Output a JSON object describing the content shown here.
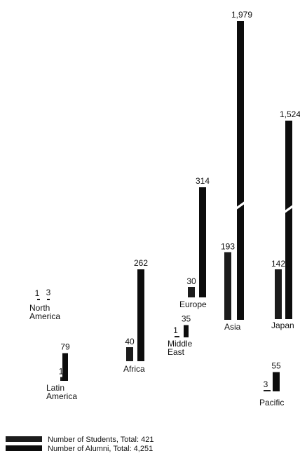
{
  "chart_data": {
    "type": "bar",
    "colors": {
      "students": "#1c1c1c",
      "alumni": "#0d0d0d"
    },
    "regions": [
      {
        "label": [
          "North",
          "America"
        ],
        "students": 1,
        "alumni": 3,
        "students_text": "1",
        "alumni_text": "3",
        "broken": false
      },
      {
        "label": [
          "Latin",
          "America"
        ],
        "students": 11,
        "alumni": 79,
        "students_text": "11",
        "alumni_text": "79",
        "broken": false
      },
      {
        "label": [
          "Africa"
        ],
        "students": 40,
        "alumni": 262,
        "students_text": "40",
        "alumni_text": "262",
        "broken": false
      },
      {
        "label": [
          "Middle",
          "East"
        ],
        "students": 1,
        "alumni": 35,
        "students_text": "1",
        "alumni_text": "35",
        "broken": false
      },
      {
        "label": [
          "Europe"
        ],
        "students": 30,
        "alumni": 314,
        "students_text": "30",
        "alumni_text": "314",
        "broken": false
      },
      {
        "label": [
          "Asia"
        ],
        "students": 193,
        "alumni": 1979,
        "students_text": "193",
        "alumni_text": "1,979",
        "broken": true
      },
      {
        "label": [
          "Japan"
        ],
        "students": 142,
        "alumni": 1524,
        "students_text": "142",
        "alumni_text": "1,524",
        "broken": true
      },
      {
        "label": [
          "Pacific"
        ],
        "students": 3,
        "alumni": 55,
        "students_text": "3",
        "alumni_text": "55",
        "broken": false
      }
    ],
    "legend": [
      {
        "series": "students",
        "text": "Number of Students, Total: 421"
      },
      {
        "series": "alumni",
        "text": "Number of Alumni, Total: 4,251"
      }
    ]
  }
}
